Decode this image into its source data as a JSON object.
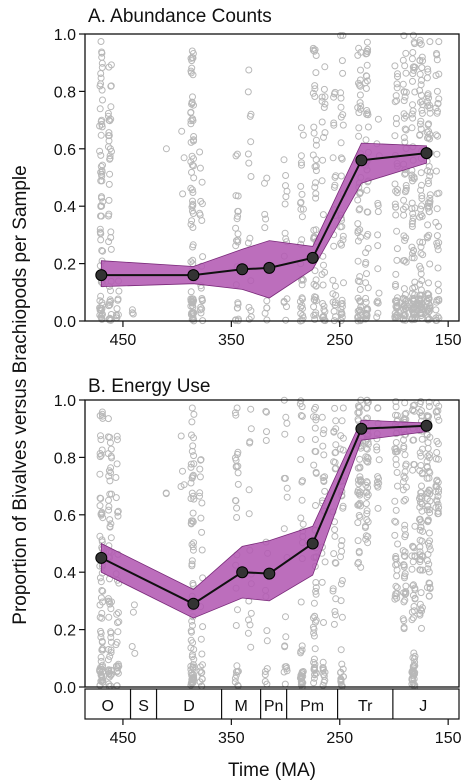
{
  "figure": {
    "ylabel": "Proportion of Bivalves versus Brachiopods per Sample",
    "xlabel": "Time (MA)"
  },
  "colors": {
    "band": "#b35ab3",
    "band_edge": "#7a2a7a",
    "line": "#111111",
    "marker": "#333333",
    "scatter": "#b8b8b8"
  },
  "chart_data": [
    {
      "type": "line",
      "title": "A. Abundance Counts",
      "x_axis": {
        "reversed": true,
        "range": [
          485,
          140
        ],
        "ticks": [
          450,
          350,
          250,
          150
        ]
      },
      "y_axis": {
        "range": [
          0,
          1
        ],
        "ticks": [
          "0.0",
          "0.2",
          "0.4",
          "0.6",
          "0.8",
          "1.0"
        ]
      },
      "grid": false,
      "series": [
        {
          "x": [
            470,
            385,
            340,
            315,
            275,
            230,
            170
          ],
          "y": [
            0.16,
            0.16,
            0.18,
            0.185,
            0.22,
            0.56,
            0.585
          ],
          "band_lower": [
            0.12,
            0.13,
            0.11,
            0.08,
            0.18,
            0.48,
            0.55
          ],
          "band_upper": [
            0.21,
            0.19,
            0.25,
            0.28,
            0.26,
            0.62,
            0.61
          ]
        }
      ],
      "scatter_columns": [
        {
          "x": 470,
          "ymin": 0.0,
          "ymax": 1.0,
          "n": 70
        },
        {
          "x": 462,
          "ymin": 0.0,
          "ymax": 0.9,
          "n": 45
        },
        {
          "x": 455,
          "ymin": 0.0,
          "ymax": 0.2,
          "n": 10
        },
        {
          "x": 440,
          "ymin": 0.0,
          "ymax": 0.05,
          "n": 3
        },
        {
          "x": 410,
          "ymin": 0.6,
          "ymax": 0.6,
          "n": 1
        },
        {
          "x": 395,
          "ymin": 0.4,
          "ymax": 0.7,
          "n": 3
        },
        {
          "x": 386,
          "ymin": 0.0,
          "ymax": 0.95,
          "n": 80
        },
        {
          "x": 378,
          "ymin": 0.0,
          "ymax": 0.7,
          "n": 20
        },
        {
          "x": 345,
          "ymin": 0.0,
          "ymax": 0.65,
          "n": 25
        },
        {
          "x": 333,
          "ymin": 0.0,
          "ymax": 0.95,
          "n": 15
        },
        {
          "x": 318,
          "ymin": 0.0,
          "ymax": 0.5,
          "n": 10
        },
        {
          "x": 300,
          "ymin": 0.0,
          "ymax": 0.7,
          "n": 15
        },
        {
          "x": 285,
          "ymin": 0.0,
          "ymax": 0.7,
          "n": 30
        },
        {
          "x": 273,
          "ymin": 0.0,
          "ymax": 1.0,
          "n": 45
        },
        {
          "x": 265,
          "ymin": 0.0,
          "ymax": 0.9,
          "n": 30
        },
        {
          "x": 255,
          "ymin": 0.0,
          "ymax": 0.8,
          "n": 25
        },
        {
          "x": 248,
          "ymin": 0.0,
          "ymax": 1.0,
          "n": 35
        },
        {
          "x": 232,
          "ymin": 0.0,
          "ymax": 1.0,
          "n": 55
        },
        {
          "x": 225,
          "ymin": 0.0,
          "ymax": 1.0,
          "n": 55
        },
        {
          "x": 215,
          "ymin": 0.0,
          "ymax": 0.8,
          "n": 15
        },
        {
          "x": 198,
          "ymin": 0.0,
          "ymax": 1.0,
          "n": 45
        },
        {
          "x": 190,
          "ymin": 0.0,
          "ymax": 1.0,
          "n": 60
        },
        {
          "x": 182,
          "ymin": 0.0,
          "ymax": 1.0,
          "n": 70
        },
        {
          "x": 175,
          "ymin": 0.0,
          "ymax": 1.0,
          "n": 70
        },
        {
          "x": 168,
          "ymin": 0.0,
          "ymax": 1.0,
          "n": 70
        },
        {
          "x": 160,
          "ymin": 0.0,
          "ymax": 1.0,
          "n": 40
        }
      ]
    },
    {
      "type": "line",
      "title": "B. Energy Use",
      "x_axis": {
        "reversed": true,
        "range": [
          485,
          140
        ],
        "ticks": [
          450,
          350,
          250,
          150
        ]
      },
      "y_axis": {
        "range": [
          0,
          1
        ],
        "ticks": [
          "0.0",
          "0.2",
          "0.4",
          "0.6",
          "0.8",
          "1.0"
        ]
      },
      "grid": false,
      "series": [
        {
          "x": [
            470,
            385,
            340,
            315,
            275,
            230,
            170
          ],
          "y": [
            0.45,
            0.29,
            0.4,
            0.395,
            0.5,
            0.9,
            0.91
          ],
          "band_lower": [
            0.4,
            0.24,
            0.31,
            0.3,
            0.39,
            0.86,
            0.89
          ],
          "band_upper": [
            0.5,
            0.34,
            0.49,
            0.51,
            0.56,
            0.93,
            0.92
          ]
        }
      ],
      "scatter_columns": [
        {
          "x": 470,
          "ymin": 0.0,
          "ymax": 1.0,
          "n": 70
        },
        {
          "x": 462,
          "ymin": 0.0,
          "ymax": 1.0,
          "n": 60
        },
        {
          "x": 455,
          "ymin": 0.0,
          "ymax": 0.9,
          "n": 30
        },
        {
          "x": 440,
          "ymin": 0.1,
          "ymax": 0.3,
          "n": 4
        },
        {
          "x": 410,
          "ymin": 0.65,
          "ymax": 0.7,
          "n": 2
        },
        {
          "x": 395,
          "ymin": 0.6,
          "ymax": 0.95,
          "n": 4
        },
        {
          "x": 386,
          "ymin": 0.0,
          "ymax": 1.0,
          "n": 80
        },
        {
          "x": 378,
          "ymin": 0.0,
          "ymax": 0.8,
          "n": 25
        },
        {
          "x": 345,
          "ymin": 0.0,
          "ymax": 1.0,
          "n": 30
        },
        {
          "x": 333,
          "ymin": 0.1,
          "ymax": 1.0,
          "n": 15
        },
        {
          "x": 318,
          "ymin": 0.0,
          "ymax": 1.0,
          "n": 15
        },
        {
          "x": 300,
          "ymin": 0.0,
          "ymax": 1.0,
          "n": 20
        },
        {
          "x": 285,
          "ymin": 0.0,
          "ymax": 1.0,
          "n": 40
        },
        {
          "x": 273,
          "ymin": 0.0,
          "ymax": 1.0,
          "n": 50
        },
        {
          "x": 265,
          "ymin": 0.0,
          "ymax": 0.95,
          "n": 30
        },
        {
          "x": 255,
          "ymin": 0.2,
          "ymax": 1.0,
          "n": 25
        },
        {
          "x": 248,
          "ymin": 0.0,
          "ymax": 1.0,
          "n": 35
        },
        {
          "x": 232,
          "ymin": 0.4,
          "ymax": 1.0,
          "n": 45
        },
        {
          "x": 225,
          "ymin": 0.5,
          "ymax": 1.0,
          "n": 45
        },
        {
          "x": 215,
          "ymin": 0.6,
          "ymax": 1.0,
          "n": 15
        },
        {
          "x": 198,
          "ymin": 0.3,
          "ymax": 1.0,
          "n": 40
        },
        {
          "x": 190,
          "ymin": 0.2,
          "ymax": 1.0,
          "n": 50
        },
        {
          "x": 182,
          "ymin": 0.0,
          "ymax": 1.0,
          "n": 60
        },
        {
          "x": 175,
          "ymin": 0.2,
          "ymax": 1.0,
          "n": 60
        },
        {
          "x": 168,
          "ymin": 0.3,
          "ymax": 1.0,
          "n": 55
        },
        {
          "x": 160,
          "ymin": 0.6,
          "ymax": 1.0,
          "n": 30
        }
      ]
    }
  ],
  "periods": [
    {
      "label": "O",
      "start": 485,
      "end": 443
    },
    {
      "label": "S",
      "start": 443,
      "end": 419
    },
    {
      "label": "D",
      "start": 419,
      "end": 359
    },
    {
      "label": "M",
      "start": 359,
      "end": 323
    },
    {
      "label": "Pn",
      "start": 323,
      "end": 299
    },
    {
      "label": "Pm",
      "start": 299,
      "end": 252
    },
    {
      "label": "Tr",
      "start": 252,
      "end": 201
    },
    {
      "label": "J",
      "start": 201,
      "end": 145
    }
  ]
}
